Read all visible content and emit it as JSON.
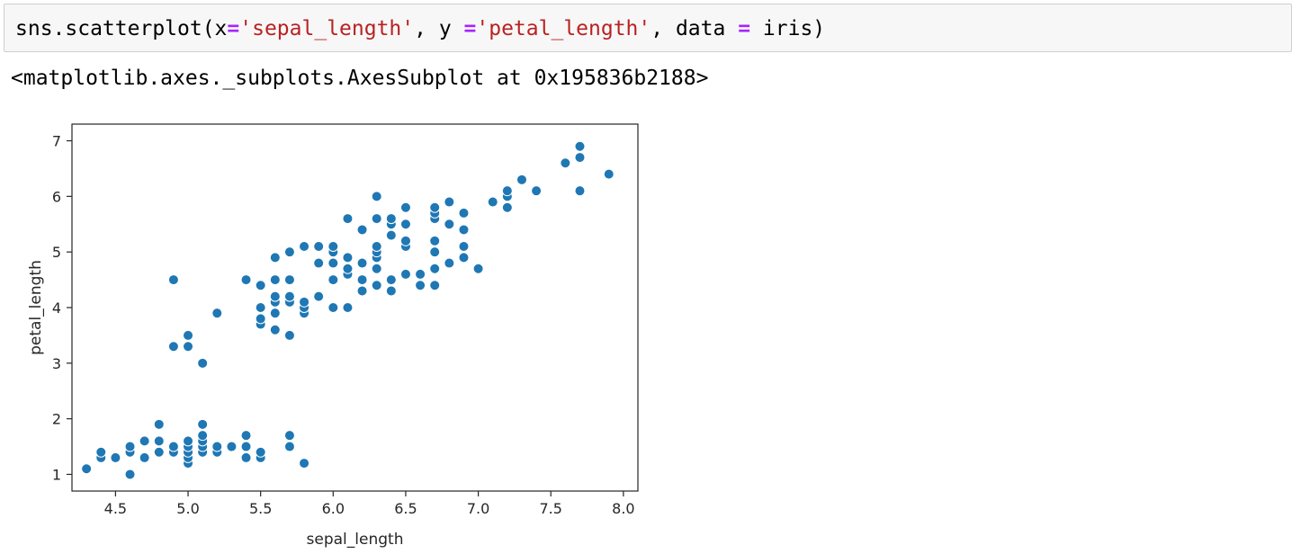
{
  "cell": {
    "input": {
      "t1": "sns.scatterplot(x",
      "t2": "=",
      "t3": "'sepal_length'",
      "t4": ", y ",
      "t5": "=",
      "t6": "'petal_length'",
      "t7": ", data ",
      "t8": "=",
      "t9": " iris)"
    },
    "output_text": "<matplotlib.axes._subplots.AxesSubplot at 0x195836b2188>"
  },
  "chart_data": {
    "type": "scatter",
    "xlabel": "sepal_length",
    "ylabel": "petal_length",
    "xlim": [
      4.2,
      8.1
    ],
    "ylim": [
      0.7,
      7.3
    ],
    "xticks": [
      4.5,
      5.0,
      5.5,
      6.0,
      6.5,
      7.0,
      7.5,
      8.0
    ],
    "xtick_labels": [
      "4.5",
      "5.0",
      "5.5",
      "6.0",
      "6.5",
      "7.0",
      "7.5",
      "8.0"
    ],
    "yticks": [
      1,
      2,
      3,
      4,
      5,
      6,
      7
    ],
    "ytick_labels": [
      "1",
      "2",
      "3",
      "4",
      "5",
      "6",
      "7"
    ],
    "grid": false,
    "color": "#1f77b4",
    "points": [
      [
        4.3,
        1.1
      ],
      [
        4.4,
        1.3
      ],
      [
        4.4,
        1.4
      ],
      [
        4.5,
        1.3
      ],
      [
        4.6,
        1.0
      ],
      [
        4.6,
        1.4
      ],
      [
        4.6,
        1.5
      ],
      [
        4.7,
        1.3
      ],
      [
        4.7,
        1.6
      ],
      [
        4.8,
        1.4
      ],
      [
        4.8,
        1.6
      ],
      [
        4.8,
        1.9
      ],
      [
        4.9,
        1.4
      ],
      [
        4.9,
        1.5
      ],
      [
        5.0,
        1.2
      ],
      [
        5.0,
        1.3
      ],
      [
        5.0,
        1.4
      ],
      [
        5.0,
        1.5
      ],
      [
        5.0,
        1.6
      ],
      [
        5.1,
        1.4
      ],
      [
        5.1,
        1.5
      ],
      [
        5.1,
        1.6
      ],
      [
        5.1,
        1.7
      ],
      [
        5.1,
        1.9
      ],
      [
        5.2,
        1.4
      ],
      [
        5.2,
        1.5
      ],
      [
        5.3,
        1.5
      ],
      [
        5.4,
        1.3
      ],
      [
        5.4,
        1.5
      ],
      [
        5.4,
        1.7
      ],
      [
        5.5,
        1.3
      ],
      [
        5.5,
        1.4
      ],
      [
        5.7,
        1.5
      ],
      [
        5.7,
        1.7
      ],
      [
        5.8,
        1.2
      ],
      [
        4.9,
        3.3
      ],
      [
        4.9,
        4.5
      ],
      [
        5.0,
        3.3
      ],
      [
        5.0,
        3.5
      ],
      [
        5.1,
        3.0
      ],
      [
        5.2,
        3.9
      ],
      [
        5.4,
        4.5
      ],
      [
        5.5,
        3.7
      ],
      [
        5.5,
        3.8
      ],
      [
        5.5,
        4.0
      ],
      [
        5.5,
        4.4
      ],
      [
        5.6,
        3.6
      ],
      [
        5.6,
        3.9
      ],
      [
        5.6,
        4.1
      ],
      [
        5.6,
        4.2
      ],
      [
        5.6,
        4.5
      ],
      [
        5.6,
        4.9
      ],
      [
        5.7,
        3.5
      ],
      [
        5.7,
        4.1
      ],
      [
        5.7,
        4.2
      ],
      [
        5.7,
        4.5
      ],
      [
        5.7,
        5.0
      ],
      [
        5.8,
        3.9
      ],
      [
        5.8,
        4.0
      ],
      [
        5.8,
        4.1
      ],
      [
        5.8,
        5.1
      ],
      [
        5.9,
        4.2
      ],
      [
        5.9,
        4.8
      ],
      [
        5.9,
        5.1
      ],
      [
        6.0,
        4.0
      ],
      [
        6.0,
        4.5
      ],
      [
        6.0,
        4.8
      ],
      [
        6.0,
        5.0
      ],
      [
        6.0,
        5.1
      ],
      [
        6.1,
        4.0
      ],
      [
        6.1,
        4.6
      ],
      [
        6.1,
        4.7
      ],
      [
        6.1,
        4.9
      ],
      [
        6.1,
        5.6
      ],
      [
        6.2,
        4.3
      ],
      [
        6.2,
        4.5
      ],
      [
        6.2,
        4.8
      ],
      [
        6.2,
        5.4
      ],
      [
        6.3,
        4.4
      ],
      [
        6.3,
        4.7
      ],
      [
        6.3,
        4.9
      ],
      [
        6.3,
        5.0
      ],
      [
        6.3,
        5.1
      ],
      [
        6.3,
        5.6
      ],
      [
        6.3,
        6.0
      ],
      [
        6.4,
        4.3
      ],
      [
        6.4,
        4.5
      ],
      [
        6.4,
        5.3
      ],
      [
        6.4,
        5.5
      ],
      [
        6.4,
        5.6
      ],
      [
        6.5,
        4.6
      ],
      [
        6.5,
        5.1
      ],
      [
        6.5,
        5.2
      ],
      [
        6.5,
        5.5
      ],
      [
        6.5,
        5.8
      ],
      [
        6.6,
        4.4
      ],
      [
        6.6,
        4.6
      ],
      [
        6.7,
        4.4
      ],
      [
        6.7,
        4.7
      ],
      [
        6.7,
        5.0
      ],
      [
        6.7,
        5.2
      ],
      [
        6.7,
        5.6
      ],
      [
        6.7,
        5.7
      ],
      [
        6.7,
        5.8
      ],
      [
        6.8,
        4.8
      ],
      [
        6.8,
        5.5
      ],
      [
        6.8,
        5.9
      ],
      [
        6.9,
        4.9
      ],
      [
        6.9,
        5.1
      ],
      [
        6.9,
        5.4
      ],
      [
        6.9,
        5.7
      ],
      [
        7.0,
        4.7
      ],
      [
        7.1,
        5.9
      ],
      [
        7.2,
        5.8
      ],
      [
        7.2,
        6.0
      ],
      [
        7.2,
        6.1
      ],
      [
        7.3,
        6.3
      ],
      [
        7.4,
        6.1
      ],
      [
        7.6,
        6.6
      ],
      [
        7.7,
        6.1
      ],
      [
        7.7,
        6.7
      ],
      [
        7.7,
        6.9
      ],
      [
        7.9,
        6.4
      ]
    ]
  }
}
